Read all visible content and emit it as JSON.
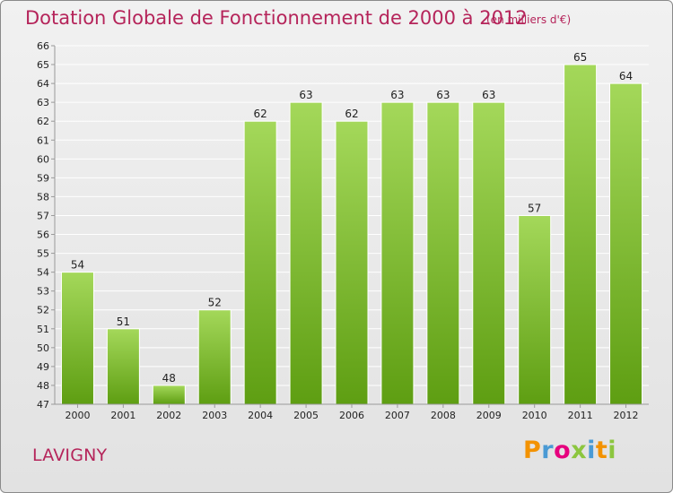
{
  "header": {
    "title": "Dotation Globale de Fonctionnement de 2000 à 2012",
    "subtitle": "(en milliers d'€)"
  },
  "footer": {
    "commune": "LAVIGNY",
    "logo_letters": [
      "P",
      "r",
      "o",
      "x",
      "i",
      "t",
      "i"
    ],
    "logo_colors": [
      "#f39200",
      "#4a9ad4",
      "#e6007e",
      "#8cc63f",
      "#4a9ad4",
      "#f39200",
      "#8cc63f"
    ]
  },
  "colors": {
    "bar_top": "#a4d85a",
    "bar_bottom": "#5e9e12",
    "bar_edge": "#ffffff",
    "axis_text": "#222222",
    "grid": "#ffffff"
  },
  "chart_data": {
    "type": "bar",
    "title": "Dotation Globale de Fonctionnement de 2000 à 2012",
    "subtitle": "(en milliers d'€)",
    "categories": [
      "2000",
      "2001",
      "2002",
      "2003",
      "2004",
      "2005",
      "2006",
      "2007",
      "2008",
      "2009",
      "2010",
      "2011",
      "2012"
    ],
    "values": [
      54,
      51,
      48,
      52,
      62,
      63,
      62,
      63,
      63,
      63,
      57,
      65,
      64
    ],
    "ylim": [
      47,
      66
    ],
    "yticks": [
      47,
      48,
      49,
      50,
      51,
      52,
      53,
      54,
      55,
      56,
      57,
      58,
      59,
      60,
      61,
      62,
      63,
      64,
      65,
      66
    ],
    "grid": true,
    "legend": "none",
    "xlabel": "",
    "ylabel": ""
  }
}
